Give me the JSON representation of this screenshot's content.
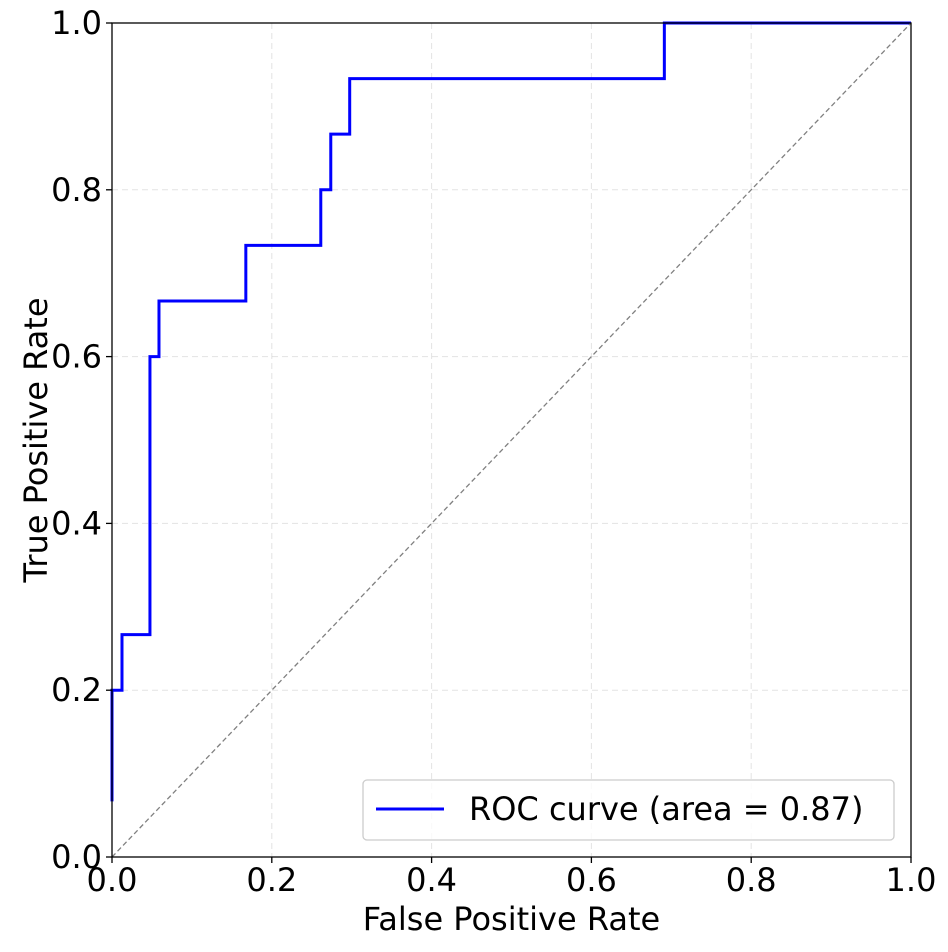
{
  "chart_data": {
    "type": "line",
    "title": "",
    "xlabel": "False Positive Rate",
    "ylabel": "True Positive Rate",
    "xlim": [
      0.0,
      1.0
    ],
    "ylim": [
      0.0,
      1.0
    ],
    "xticks": [
      "0.0",
      "0.2",
      "0.4",
      "0.6",
      "0.8",
      "1.0"
    ],
    "yticks": [
      "0.0",
      "0.2",
      "0.4",
      "0.6",
      "0.8",
      "1.0"
    ],
    "grid": true,
    "legend_position": "lower-right",
    "series": [
      {
        "name": "ROC curve (area = 0.87)",
        "color": "#0000ff",
        "style": "step",
        "points": [
          [
            0.0,
            0.0667
          ],
          [
            0.0,
            0.2
          ],
          [
            0.0125,
            0.2
          ],
          [
            0.0125,
            0.2667
          ],
          [
            0.0475,
            0.2667
          ],
          [
            0.0475,
            0.6
          ],
          [
            0.0588,
            0.6
          ],
          [
            0.0588,
            0.6667
          ],
          [
            0.1675,
            0.6667
          ],
          [
            0.1675,
            0.7333
          ],
          [
            0.2613,
            0.7333
          ],
          [
            0.2613,
            0.8
          ],
          [
            0.2738,
            0.8
          ],
          [
            0.2738,
            0.8667
          ],
          [
            0.2975,
            0.8667
          ],
          [
            0.2975,
            0.9333
          ],
          [
            0.6913,
            0.9333
          ],
          [
            0.6913,
            1.0
          ],
          [
            1.0,
            1.0
          ]
        ]
      },
      {
        "color": "#808080",
        "style": "dashed",
        "points": [
          [
            0.0,
            0.0
          ],
          [
            1.0,
            1.0
          ]
        ]
      }
    ]
  }
}
